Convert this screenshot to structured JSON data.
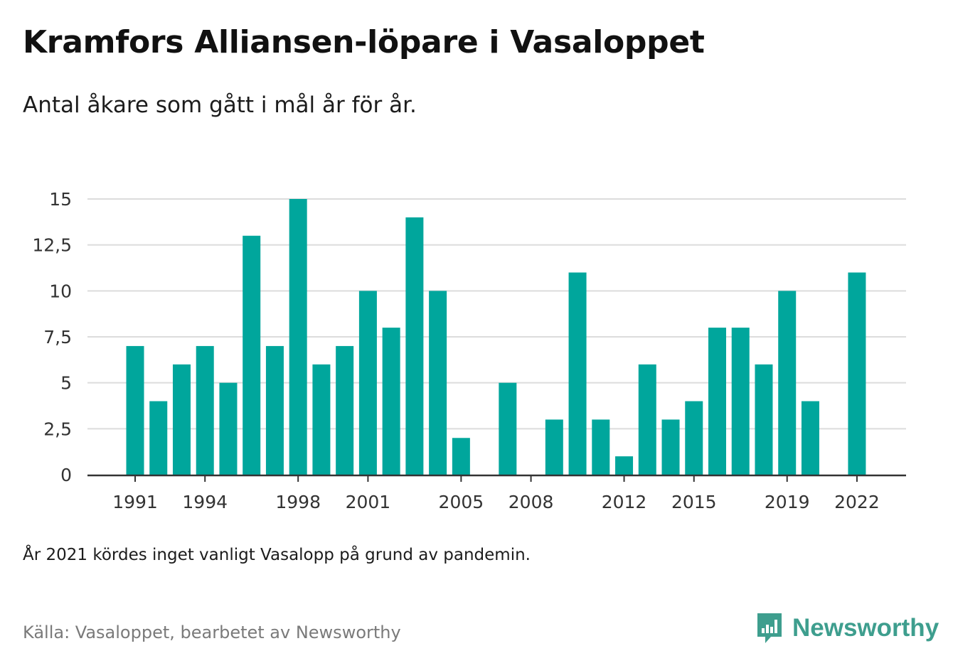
{
  "header": {
    "title": "Kramfors Alliansen-löpare i Vasaloppet",
    "subtitle": "Antal åkare som gått i mål år för år."
  },
  "footer": {
    "note": "År 2021 kördes inget vanligt Vasalopp på grund av pandemin.",
    "source": "Källa: Vasaloppet, bearbetet av Newsworthy",
    "brand": "Newsworthy",
    "brand_icon": "newsworthy-chart-logo-icon"
  },
  "colors": {
    "bar": "#00a69c",
    "gridline": "#dcdcdc",
    "axis": "#333333",
    "brand": "#3e9e8e"
  },
  "chart_data": {
    "type": "bar",
    "title": "Kramfors Alliansen-löpare i Vasaloppet",
    "subtitle": "Antal åkare som gått i mål år för år.",
    "xlabel": "",
    "ylabel": "",
    "ylim": [
      0,
      15
    ],
    "yticks": [
      0,
      2.5,
      5,
      7.5,
      10,
      12.5,
      15
    ],
    "ytick_labels": [
      "0",
      "2,5",
      "5",
      "7,5",
      "10",
      "12,5",
      "15"
    ],
    "grid": true,
    "xtick_labels": [
      "1991",
      "1994",
      "1998",
      "2001",
      "2005",
      "2008",
      "2012",
      "2015",
      "2019",
      "2022"
    ],
    "categories": [
      1991,
      1992,
      1993,
      1994,
      1995,
      1996,
      1997,
      1998,
      1999,
      2000,
      2001,
      2002,
      2003,
      2004,
      2005,
      2006,
      2007,
      2008,
      2009,
      2010,
      2011,
      2012,
      2013,
      2014,
      2015,
      2016,
      2017,
      2018,
      2019,
      2020,
      2021,
      2022
    ],
    "values": [
      7,
      4,
      6,
      7,
      5,
      13,
      7,
      15,
      6,
      7,
      10,
      8,
      14,
      10,
      2,
      0,
      5,
      0,
      3,
      11,
      3,
      1,
      6,
      3,
      4,
      8,
      8,
      6,
      10,
      4,
      0,
      11
    ]
  }
}
